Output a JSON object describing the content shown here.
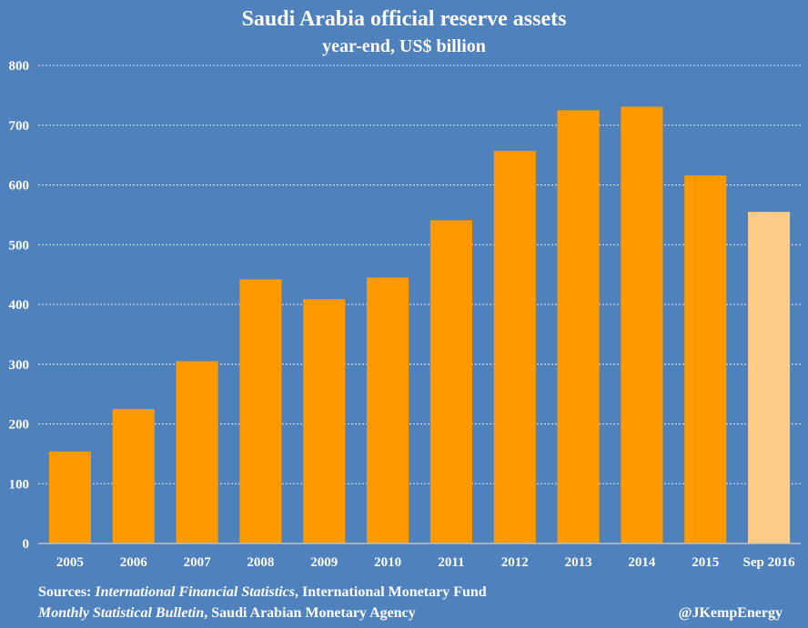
{
  "chart_data": {
    "type": "bar",
    "title": "Saudi Arabia official reserve assets",
    "subtitle": "year-end, US$ billion",
    "categories": [
      "2005",
      "2006",
      "2007",
      "2008",
      "2009",
      "2010",
      "2011",
      "2012",
      "2013",
      "2014",
      "2015",
      "Sep 2016"
    ],
    "values": [
      154,
      225,
      305,
      442,
      409,
      445,
      541,
      657,
      725,
      731,
      616,
      555
    ],
    "ylim": [
      0,
      800
    ],
    "yticks": [
      "0",
      "100",
      "200",
      "300",
      "400",
      "500",
      "600",
      "700",
      "800"
    ],
    "grid": true,
    "bar_color": "#ff9900",
    "highlight_color": "#ffcc88",
    "highlight_index": 11
  },
  "footer": {
    "source_prefix": "Sources: ",
    "source1_italic": "International Financial Statistics",
    "source1_rest": ", International Monetary Fund",
    "source2_italic": "Monthly Statistical Bulletin",
    "source2_rest": ", Saudi Arabian Monetary Agency",
    "handle": "@JKempEnergy"
  }
}
